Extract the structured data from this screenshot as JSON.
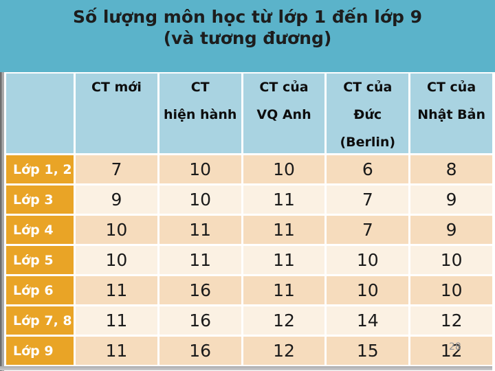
{
  "slide": {
    "title_line1": "Số lượng môn học từ lớp 1 đến lớp 9",
    "title_line2": "(và tương đương)",
    "page_number": "28"
  },
  "table": {
    "headers": [
      {
        "lines": []
      },
      {
        "lines": [
          "CT mới"
        ]
      },
      {
        "lines": [
          "CT",
          "hiện hành"
        ]
      },
      {
        "lines": [
          "CT của",
          "VQ Anh"
        ]
      },
      {
        "lines": [
          "CT của",
          "Đức",
          "(Berlin)"
        ]
      },
      {
        "lines": [
          "CT của",
          "Nhật Bản"
        ]
      }
    ],
    "rows": [
      {
        "label": "Lớp 1, 2",
        "values": [
          "7",
          "10",
          "10",
          "6",
          "8"
        ]
      },
      {
        "label": "Lớp 3",
        "values": [
          "9",
          "10",
          "11",
          "7",
          "9"
        ]
      },
      {
        "label": "Lớp 4",
        "values": [
          "10",
          "11",
          "11",
          "7",
          "9"
        ]
      },
      {
        "label": "Lớp 5",
        "values": [
          "10",
          "11",
          "11",
          "10",
          "10"
        ]
      },
      {
        "label": "Lớp 6",
        "values": [
          "11",
          "16",
          "11",
          "10",
          "10"
        ]
      },
      {
        "label": "Lớp 7, 8",
        "values": [
          "11",
          "16",
          "12",
          "14",
          "12"
        ]
      },
      {
        "label": "Lớp 9",
        "values": [
          "11",
          "16",
          "12",
          "15",
          "12"
        ]
      }
    ]
  },
  "colors": {
    "title_band": "#5BB3CA",
    "header_cell": "#A9D3E1",
    "row_label": "#E9A426",
    "row_dark": "#F6DCBD",
    "row_light": "#FBF1E3",
    "title_text": "#1d1d1d",
    "label_text": "#ffffff",
    "cell_text": "#1a1a1a",
    "page_number_text": "#909295"
  },
  "chart_data": {
    "type": "table",
    "title": "Số lượng môn học từ lớp 1 đến lớp 9 (và tương đương)",
    "columns": [
      "",
      "CT mới",
      "CT hiện hành",
      "CT của VQ Anh",
      "CT của Đức (Berlin)",
      "CT của Nhật Bản"
    ],
    "rows": [
      [
        "Lớp 1, 2",
        7,
        10,
        10,
        6,
        8
      ],
      [
        "Lớp 3",
        9,
        10,
        11,
        7,
        9
      ],
      [
        "Lớp 4",
        10,
        11,
        11,
        7,
        9
      ],
      [
        "Lớp 5",
        10,
        11,
        11,
        10,
        10
      ],
      [
        "Lớp 6",
        11,
        16,
        11,
        10,
        10
      ],
      [
        "Lớp 7, 8",
        11,
        16,
        12,
        14,
        12
      ],
      [
        "Lớp 9",
        11,
        16,
        12,
        15,
        12
      ]
    ]
  }
}
